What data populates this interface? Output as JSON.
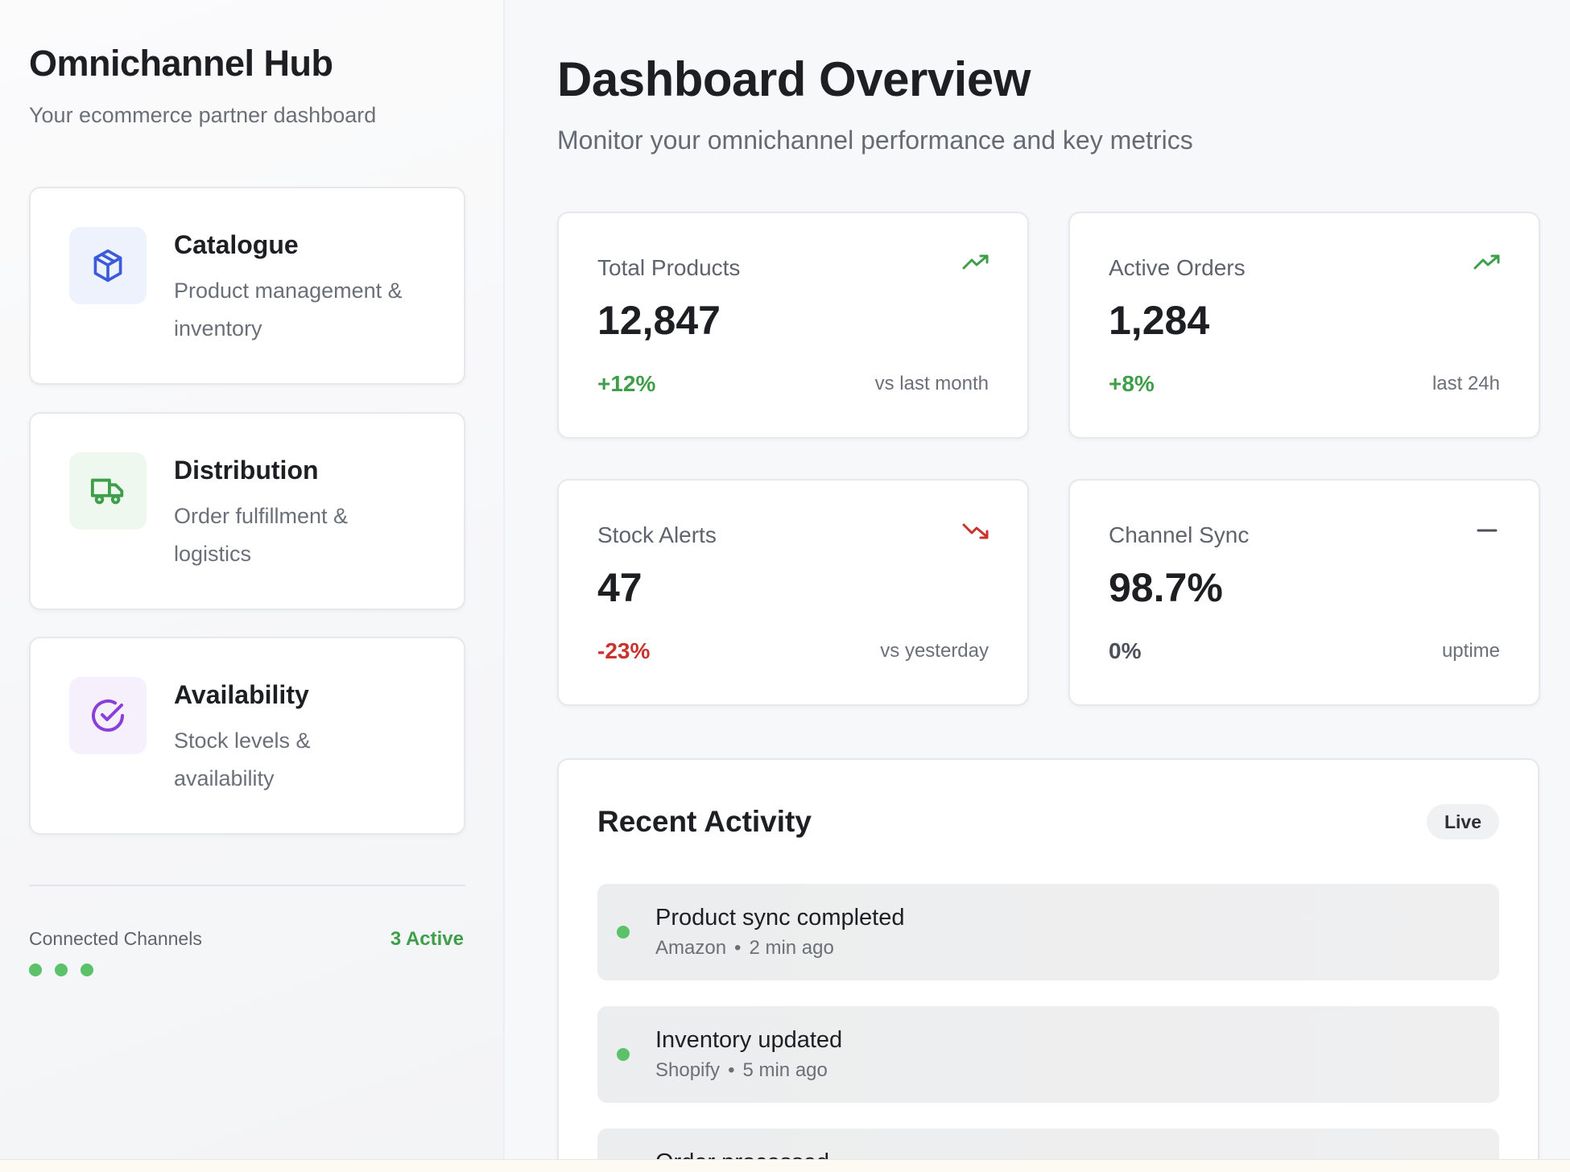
{
  "sidebar": {
    "title": "Omnichannel Hub",
    "subtitle": "Your ecommerce partner dashboard",
    "nav": [
      {
        "title": "Catalogue",
        "desc_line1": "Product management &",
        "desc_line2": "inventory",
        "icon": "package-icon",
        "color": "#3b5bdb"
      },
      {
        "title": "Distribution",
        "desc_line1": "Order fulfillment &",
        "desc_line2": "logistics",
        "icon": "truck-icon",
        "color": "#3f9e4a"
      },
      {
        "title": "Availability",
        "desc_line1": "Stock levels &",
        "desc_line2": "availability",
        "icon": "check-circle-icon",
        "color": "#8a3fd9"
      }
    ],
    "channels": {
      "label": "Connected Channels",
      "count": "3 Active"
    }
  },
  "main": {
    "title": "Dashboard Overview",
    "subtitle": "Monitor your omnichannel performance and key metrics"
  },
  "stats": [
    {
      "label": "Total Products",
      "value": "12,847",
      "change": "+12%",
      "period": "vs last month",
      "trend": "up"
    },
    {
      "label": "Active Orders",
      "value": "1,284",
      "change": "+8%",
      "period": "last 24h",
      "trend": "up"
    },
    {
      "label": "Stock Alerts",
      "value": "47",
      "change": "-23%",
      "period": "vs yesterday",
      "trend": "down"
    },
    {
      "label": "Channel Sync",
      "value": "98.7%",
      "change": "0%",
      "period": "uptime",
      "trend": "neutral"
    }
  ],
  "activity": {
    "title": "Recent Activity",
    "badge": "Live",
    "items": [
      {
        "title": "Product sync completed",
        "source": "Amazon",
        "time": "2 min ago"
      },
      {
        "title": "Inventory updated",
        "source": "Shopify",
        "time": "5 min ago"
      },
      {
        "title": "Order processed",
        "source": "",
        "time": ""
      }
    ]
  },
  "colors": {
    "accent_green": "#3f9e4a",
    "accent_red": "#c8332e",
    "accent_blue": "#3b5bdb",
    "accent_purple": "#8a3fd9"
  }
}
